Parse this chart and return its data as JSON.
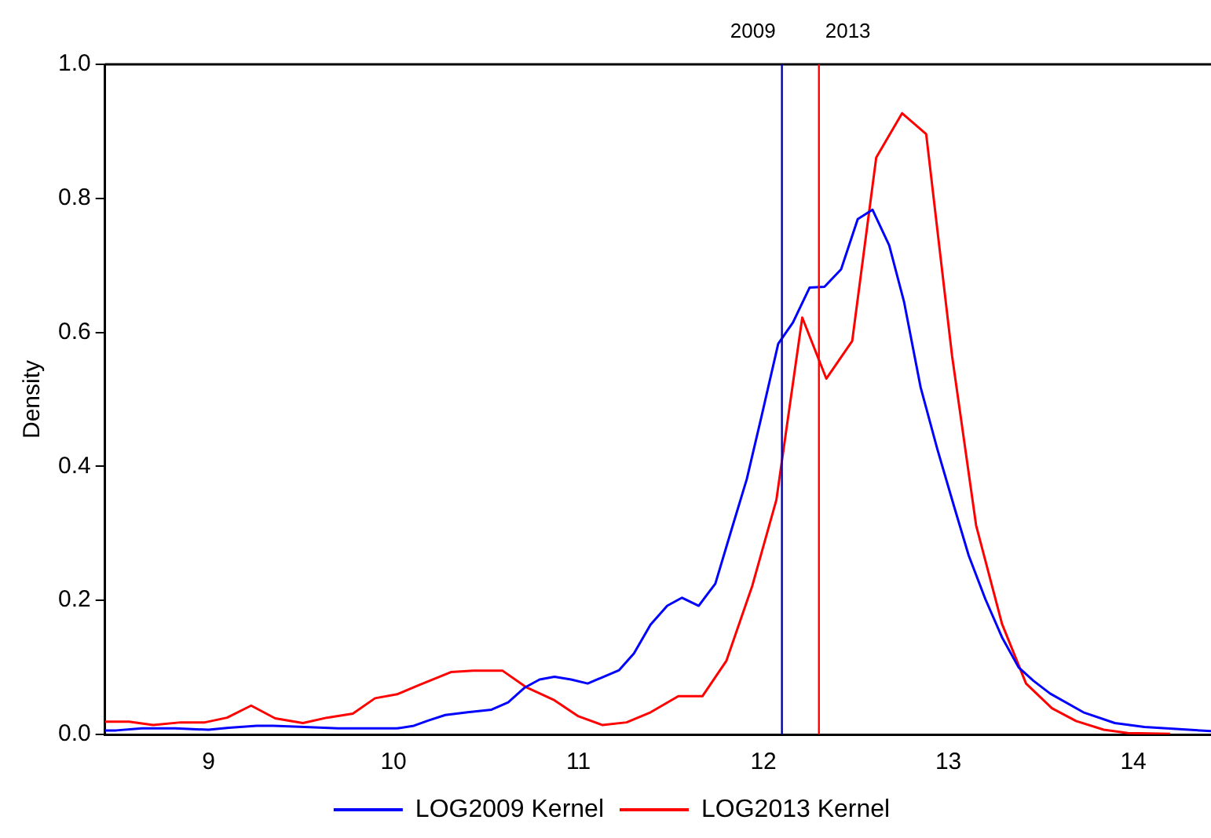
{
  "chart_data": {
    "type": "line",
    "ylabel": "Density",
    "xlim": [
      8.44,
      14.42
    ],
    "xticks": [
      9,
      10,
      11,
      12,
      13,
      14
    ],
    "ylim": [
      0,
      1
    ],
    "yticks": [
      {
        "value": 0,
        "label": "0.0"
      },
      {
        "value": 0.2,
        "label": "0.2"
      },
      {
        "value": 0.4,
        "label": "0.4"
      },
      {
        "value": 0.6,
        "label": "0.6"
      },
      {
        "value": 0.8,
        "label": "0.8"
      },
      {
        "value": 1,
        "label": "1.0"
      }
    ],
    "grid": false,
    "legend": "bottom",
    "marker": "none",
    "line_style": "solid",
    "series": [
      {
        "name": "LOG2009 Kernel",
        "color": "#0000ff",
        "x": [
          8.44,
          8.5,
          8.64,
          8.82,
          9.0,
          9.11,
          9.26,
          9.35,
          9.52,
          9.7,
          9.87,
          10.02,
          10.11,
          10.19,
          10.28,
          10.4,
          10.53,
          10.62,
          10.71,
          10.79,
          10.87,
          10.96,
          11.05,
          11.22,
          11.3,
          11.39,
          11.48,
          11.56,
          11.65,
          11.74,
          11.83,
          11.91,
          11.99,
          12.08,
          12.16,
          12.25,
          12.33,
          12.42,
          12.51,
          12.59,
          12.68,
          12.76,
          12.85,
          12.94,
          13.03,
          13.11,
          13.2,
          13.29,
          13.38,
          13.46,
          13.55,
          13.73,
          13.9,
          14.06,
          14.42
        ],
        "values": [
          0.006,
          0.006,
          0.009,
          0.009,
          0.007,
          0.01,
          0.013,
          0.013,
          0.011,
          0.009,
          0.009,
          0.009,
          0.013,
          0.021,
          0.029,
          0.033,
          0.037,
          0.048,
          0.07,
          0.082,
          0.086,
          0.082,
          0.076,
          0.096,
          0.121,
          0.164,
          0.192,
          0.204,
          0.192,
          0.225,
          0.308,
          0.381,
          0.475,
          0.583,
          0.615,
          0.667,
          0.668,
          0.694,
          0.769,
          0.783,
          0.73,
          0.646,
          0.518,
          0.426,
          0.341,
          0.267,
          0.202,
          0.145,
          0.1,
          0.08,
          0.061,
          0.033,
          0.017,
          0.011,
          0.005
        ]
      },
      {
        "name": "LOG2013 Kernel",
        "color": "#ff0000",
        "x": [
          8.44,
          8.5,
          8.57,
          8.7,
          8.85,
          8.98,
          9.1,
          9.23,
          9.36,
          9.51,
          9.64,
          9.78,
          9.9,
          10.02,
          10.14,
          10.31,
          10.43,
          10.59,
          10.72,
          10.87,
          11.0,
          11.13,
          11.26,
          11.39,
          11.54,
          11.67,
          11.8,
          11.94,
          12.07,
          12.21,
          12.34,
          12.48,
          12.61,
          12.75,
          12.88,
          13.02,
          13.15,
          13.29,
          13.42,
          13.56,
          13.69,
          13.84,
          13.97,
          14.2
        ],
        "values": [
          0.019,
          0.019,
          0.019,
          0.014,
          0.018,
          0.018,
          0.025,
          0.043,
          0.024,
          0.017,
          0.025,
          0.031,
          0.054,
          0.06,
          0.074,
          0.093,
          0.095,
          0.095,
          0.07,
          0.051,
          0.027,
          0.014,
          0.018,
          0.033,
          0.057,
          0.057,
          0.11,
          0.222,
          0.35,
          0.622,
          0.531,
          0.587,
          0.861,
          0.927,
          0.896,
          0.565,
          0.312,
          0.165,
          0.076,
          0.039,
          0.02,
          0.007,
          0.002,
          0.001
        ]
      }
    ],
    "ref_lines": [
      {
        "axis": "x",
        "value": 12.1,
        "color": "#0000aa"
      },
      {
        "axis": "x",
        "value": 12.3,
        "color": "#ff0000"
      }
    ],
    "annotations": [
      "2009",
      "2013"
    ]
  }
}
